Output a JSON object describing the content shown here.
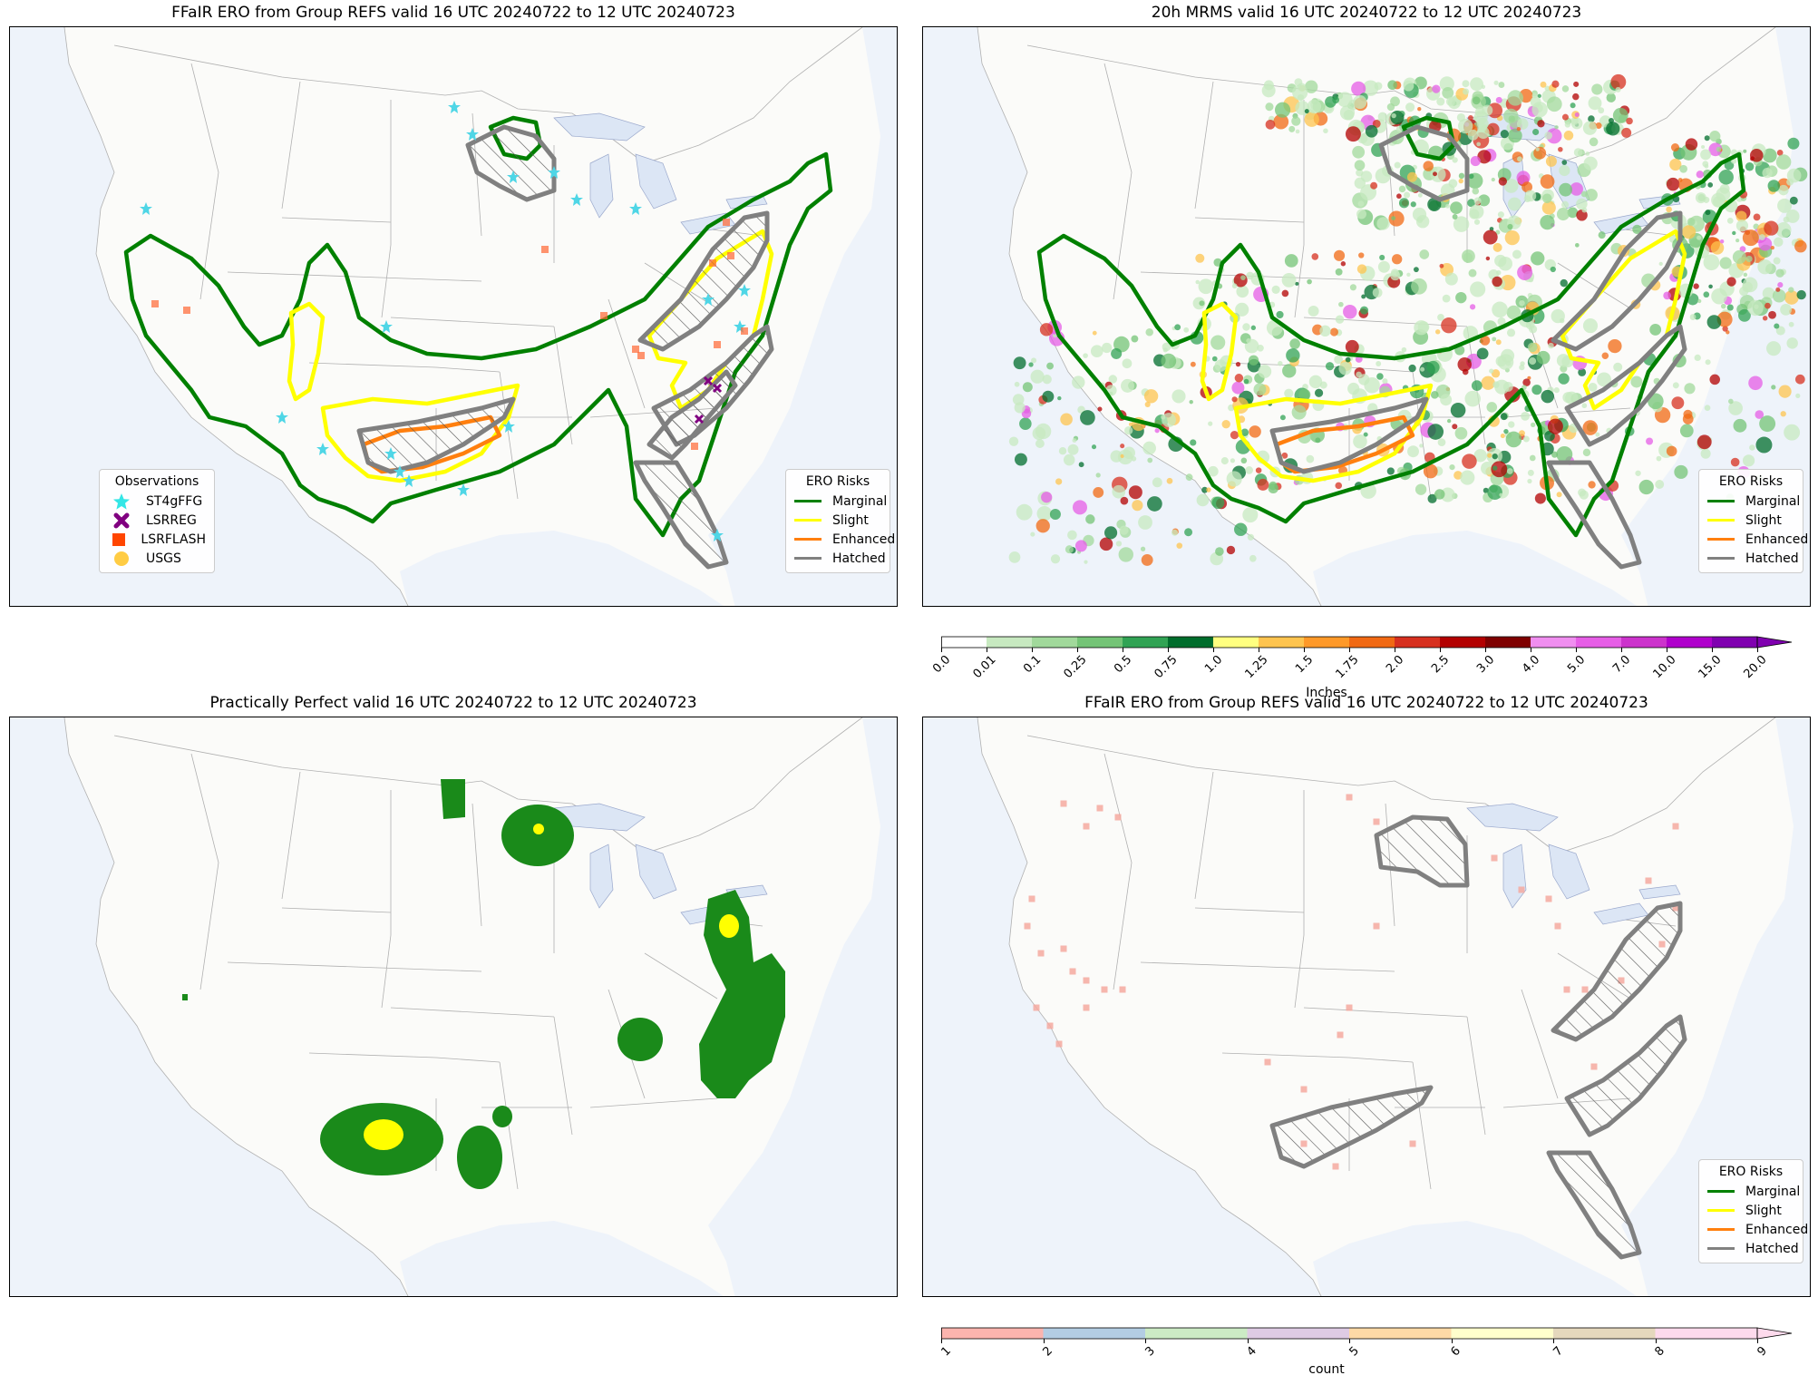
{
  "panels": [
    {
      "title": "FFaIR ERO from Group REFS valid 16 UTC 20240722 to 12 UTC 20240723"
    },
    {
      "title": "20h MRMS valid 16 UTC 20240722 to 12 UTC 20240723"
    },
    {
      "title": "Practically Perfect valid 16 UTC 20240722 to 12 UTC 20240723"
    },
    {
      "title": "FFaIR ERO from Group REFS valid 16 UTC 20240722 to 12 UTC 20240723"
    }
  ],
  "ero_legend": {
    "title": "ERO Risks",
    "items": [
      {
        "label": "Marginal",
        "color": "#008000"
      },
      {
        "label": "Slight",
        "color": "#ffff00"
      },
      {
        "label": "Enhanced",
        "color": "#ff7f0e"
      },
      {
        "label": "Hatched",
        "color": "#808080"
      }
    ]
  },
  "obs_legend": {
    "title": "Observations",
    "items": [
      {
        "label": "ST4gFFG",
        "color": "#33e6e6",
        "icon": "star-icon"
      },
      {
        "label": "LSRREG",
        "color": "#800080",
        "icon": "x-icon"
      },
      {
        "label": "LSRFLASH",
        "color": "#ff4500",
        "icon": "square-icon"
      },
      {
        "label": "USGS",
        "color": "#ffcc44",
        "icon": "circle-icon"
      }
    ]
  },
  "precip_colorbar": {
    "label": "Inches",
    "ticks": [
      "0.0",
      "0.01",
      "0.1",
      "0.25",
      "0.5",
      "0.75",
      "1.0",
      "1.25",
      "1.5",
      "1.75",
      "2.0",
      "2.5",
      "3.0",
      "4.0",
      "5.0",
      "7.0",
      "10.0",
      "15.0",
      "20.0"
    ],
    "colors": [
      "#ffffff",
      "#c7e9c0",
      "#a1d99b",
      "#74c476",
      "#31a354",
      "#006d2c",
      "#ffff80",
      "#fec44f",
      "#fe9929",
      "#f16913",
      "#d7301f",
      "#b30000",
      "#7f0000",
      "#f08ef0",
      "#e65ee6",
      "#cc33cc",
      "#b000cc",
      "#8000b0"
    ]
  },
  "count_colorbar": {
    "label": "count",
    "ticks": [
      "1",
      "2",
      "3",
      "4",
      "5",
      "6",
      "7",
      "8",
      "9"
    ],
    "colors": [
      "#fbb4ae",
      "#b3cde3",
      "#ccebc5",
      "#decbe4",
      "#fed9a6",
      "#ffffcc",
      "#e5d8bd",
      "#fddaec"
    ]
  }
}
